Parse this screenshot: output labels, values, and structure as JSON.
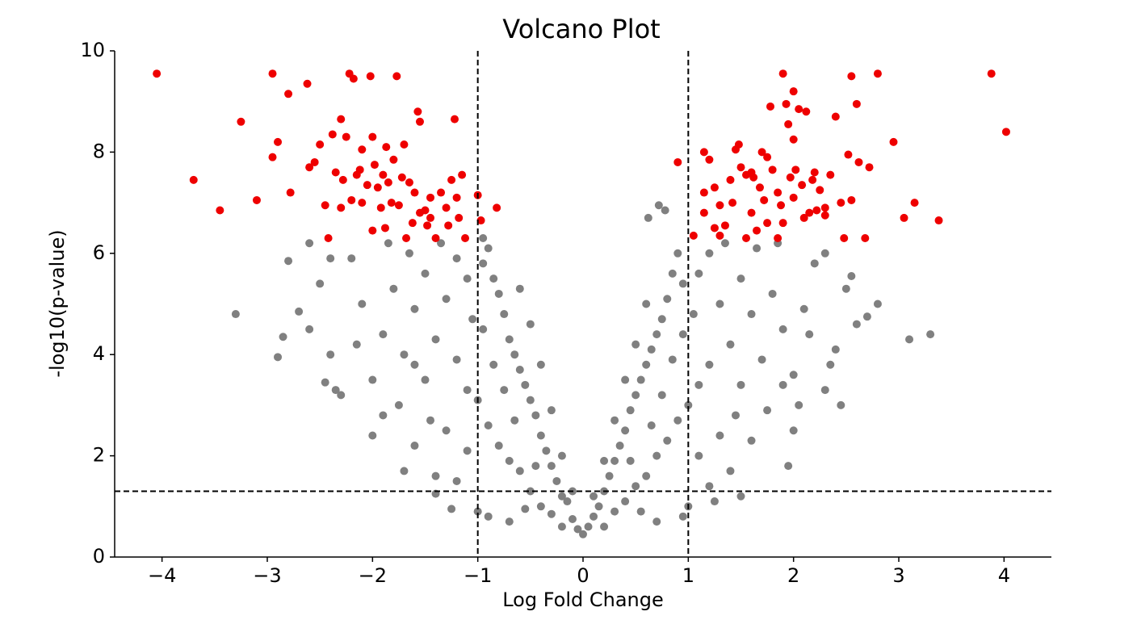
{
  "chart_data": {
    "type": "scatter",
    "title": "Volcano Plot",
    "x_label": "Log Fold Change",
    "y_label": "-log10(p-value)",
    "xlim": [
      -4.45,
      4.45
    ],
    "ylim": [
      0,
      10
    ],
    "xticks": [
      {
        "value": -4,
        "label": "−4"
      },
      {
        "value": -3,
        "label": "−3"
      },
      {
        "value": -2,
        "label": "−2"
      },
      {
        "value": -1,
        "label": "−1"
      },
      0,
      1,
      2,
      3,
      4
    ],
    "yticks": [
      0,
      2,
      4,
      6,
      8,
      10
    ],
    "vlines": [
      -1,
      1
    ],
    "hline": 1.3,
    "series": [
      {
        "color": "#808080",
        "x": [
          0,
          0.05,
          -0.05,
          0.1,
          -0.1,
          0.15,
          -0.15,
          0.2,
          -0.2,
          0.25,
          -0.25,
          0.3,
          -0.3,
          0.35,
          -0.35,
          0.4,
          -0.4,
          0.45,
          -0.45,
          0.5,
          -0.5,
          0.55,
          -0.55,
          0.6,
          -0.6,
          0.65,
          -0.65,
          0.7,
          -0.7,
          0.75,
          -0.75,
          0.8,
          -0.8,
          0.85,
          -0.85,
          0.9,
          -0.9,
          0.78,
          0.72,
          0.62,
          -0.95,
          0.3,
          -0.3,
          0.4,
          -0.4,
          0.5,
          -0.5,
          0.6,
          -0.6,
          0.7,
          -0.7,
          0.8,
          -0.8,
          0.9,
          -0.9,
          1.0,
          -1.0,
          1.1,
          -1.1,
          0.2,
          -0.2,
          0.55,
          -0.55,
          0.45,
          -0.45,
          0.65,
          -0.65,
          0.75,
          -0.75,
          0.85,
          -0.85,
          0.95,
          -0.95,
          1.0,
          -1.0,
          1.2,
          -1.2,
          1.1,
          -1.1,
          1.3,
          -1.3,
          1.2,
          -1.2,
          1.4,
          -1.4,
          1.3,
          -1.3,
          1.1,
          -1.1,
          1.2,
          -1.2,
          1.5,
          -1.5,
          1.6,
          -1.6,
          1.5,
          -1.5,
          1.45,
          -1.45,
          1.7,
          -1.7,
          1.8,
          -1.8,
          1.9,
          -1.9,
          1.65,
          -1.65,
          1.4,
          -1.4,
          1.6,
          -1.6,
          1.75,
          -1.75,
          2.0,
          -2.0,
          2.1,
          -2.1,
          2.2,
          -2.2,
          2.0,
          -2.0,
          2.3,
          -2.3,
          2.4,
          -2.4,
          2.5,
          -2.5,
          2.6,
          -2.6,
          2.7,
          -2.7,
          2.55,
          -2.8,
          3.3,
          3.1,
          -3.3,
          -2.9,
          -2.85,
          2.45,
          -2.45,
          2.35,
          -2.35,
          1.95,
          -1.7,
          1.5,
          -1.4,
          0.95,
          -0.9,
          0.7,
          -0.7,
          2.05,
          -1.9,
          1.85,
          -1.85,
          2.3,
          -2.4,
          1.35,
          -1.35,
          0.6,
          -0.6,
          0.5,
          -0.5,
          0.4,
          -0.4,
          0.3,
          -0.3,
          0.2,
          -0.2,
          0.1,
          -0.1,
          2.8,
          -2.6,
          1.9,
          -1.6,
          2.15,
          -2.15,
          1.05,
          -1.05,
          0.95,
          -0.95,
          1.25,
          -1.25
        ],
        "values": [
          0.45,
          0.6,
          0.55,
          0.8,
          0.75,
          1.0,
          1.1,
          1.3,
          1.2,
          1.6,
          1.5,
          1.9,
          1.8,
          2.2,
          2.1,
          2.5,
          2.4,
          2.9,
          2.8,
          3.2,
          3.1,
          3.5,
          3.4,
          3.8,
          3.7,
          4.1,
          4.0,
          4.4,
          4.3,
          4.7,
          4.8,
          5.1,
          5.2,
          5.6,
          5.5,
          6.0,
          6.1,
          6.85,
          6.95,
          6.7,
          6.3,
          0.9,
          0.85,
          1.1,
          1.0,
          1.4,
          1.3,
          1.6,
          1.7,
          2.0,
          1.9,
          2.3,
          2.2,
          2.7,
          2.6,
          3.0,
          3.1,
          3.4,
          3.3,
          0.6,
          0.6,
          0.9,
          0.95,
          1.9,
          1.8,
          2.6,
          2.7,
          3.2,
          3.3,
          3.9,
          3.8,
          4.4,
          4.5,
          1.0,
          0.9,
          1.4,
          1.5,
          2.0,
          2.1,
          2.4,
          2.5,
          3.8,
          3.9,
          4.2,
          4.3,
          5.0,
          5.1,
          5.6,
          5.5,
          6.0,
          5.9,
          5.5,
          5.6,
          4.8,
          4.9,
          3.4,
          3.5,
          2.8,
          2.7,
          3.9,
          4.0,
          5.2,
          5.3,
          4.5,
          4.4,
          6.1,
          6.0,
          1.7,
          1.6,
          2.3,
          2.2,
          2.9,
          3.0,
          3.6,
          3.5,
          4.9,
          5.0,
          5.8,
          5.9,
          2.5,
          2.4,
          3.3,
          3.2,
          4.1,
          4.0,
          5.3,
          5.4,
          4.6,
          4.5,
          4.75,
          4.85,
          5.55,
          5.85,
          4.4,
          4.3,
          4.8,
          3.95,
          4.35,
          3.0,
          3.45,
          3.8,
          3.3,
          1.8,
          1.7,
          1.2,
          1.25,
          0.8,
          0.8,
          0.7,
          0.7,
          3.0,
          2.8,
          6.2,
          6.2,
          6.0,
          5.9,
          6.2,
          6.2,
          5.0,
          5.3,
          4.2,
          4.6,
          3.5,
          3.8,
          2.7,
          2.9,
          1.9,
          2.0,
          1.2,
          1.3,
          5.0,
          6.2,
          3.4,
          3.8,
          4.4,
          4.2,
          4.8,
          4.7,
          5.4,
          5.8,
          1.1,
          0.95
        ]
      },
      {
        "color": "#ee0000",
        "x": [
          -4.05,
          -3.7,
          -3.45,
          -3.25,
          -3.1,
          -2.95,
          -2.9,
          -2.95,
          -2.8,
          -2.78,
          -2.62,
          -2.6,
          -2.55,
          -2.5,
          -2.45,
          -2.42,
          -2.38,
          -2.35,
          -2.3,
          -2.28,
          -2.25,
          -2.22,
          -2.18,
          -2.15,
          -2.12,
          -2.1,
          -2.05,
          -2.02,
          -2.0,
          -1.98,
          -1.95,
          -1.9,
          -1.87,
          -1.85,
          -1.82,
          -1.8,
          -1.77,
          -1.75,
          -1.72,
          -1.7,
          -1.68,
          -1.62,
          -1.6,
          -1.57,
          -1.55,
          -1.55,
          -1.5,
          -1.48,
          -1.45,
          -1.4,
          -1.35,
          -1.3,
          -1.28,
          -1.25,
          -1.22,
          -1.2,
          -1.18,
          -1.15,
          -1.12,
          -1.0,
          -0.97,
          -0.82,
          -2.0,
          -2.3,
          -1.92,
          -2.1,
          -2.2,
          -1.65,
          -1.88,
          -1.45,
          0.9,
          1.05,
          1.15,
          1.15,
          1.2,
          1.25,
          1.3,
          1.35,
          1.4,
          1.45,
          1.48,
          1.5,
          1.55,
          1.6,
          1.62,
          1.65,
          1.7,
          1.72,
          1.75,
          1.78,
          1.8,
          1.85,
          1.88,
          1.9,
          1.93,
          1.95,
          1.97,
          2.0,
          2.0,
          2.02,
          2.05,
          2.08,
          2.12,
          2.15,
          2.18,
          2.22,
          2.25,
          2.3,
          2.35,
          2.4,
          2.45,
          2.48,
          2.52,
          2.55,
          2.6,
          2.62,
          2.68,
          2.72,
          2.8,
          2.95,
          3.05,
          3.15,
          3.38,
          3.88,
          4.02,
          1.3,
          1.55,
          1.85,
          2.1,
          2.0,
          1.75,
          1.6,
          1.42,
          1.25,
          1.9,
          2.3,
          1.68,
          2.55,
          2.2,
          1.15
        ],
        "values": [
          9.55,
          7.45,
          6.85,
          8.6,
          7.05,
          9.55,
          8.2,
          7.9,
          9.15,
          7.2,
          9.35,
          7.7,
          7.8,
          8.15,
          6.95,
          6.3,
          8.35,
          7.6,
          8.65,
          7.45,
          8.3,
          9.55,
          9.45,
          7.55,
          7.65,
          8.05,
          7.35,
          9.5,
          8.3,
          7.75,
          7.3,
          7.55,
          8.1,
          7.4,
          7.0,
          7.85,
          9.5,
          6.95,
          7.5,
          8.15,
          6.3,
          6.6,
          7.2,
          8.8,
          8.6,
          6.8,
          6.85,
          6.55,
          6.7,
          6.3,
          7.2,
          6.9,
          6.55,
          7.45,
          8.65,
          7.1,
          6.7,
          7.55,
          6.3,
          7.15,
          6.65,
          6.9,
          6.45,
          6.9,
          6.9,
          7.0,
          7.05,
          7.4,
          6.5,
          7.1,
          7.8,
          6.35,
          6.8,
          8.0,
          7.85,
          7.3,
          6.95,
          6.55,
          7.45,
          8.05,
          8.15,
          7.7,
          7.55,
          6.8,
          7.5,
          6.45,
          8.0,
          7.05,
          6.6,
          8.9,
          7.65,
          7.2,
          6.95,
          9.55,
          8.95,
          8.55,
          7.5,
          9.2,
          8.25,
          7.65,
          8.85,
          7.35,
          8.8,
          6.8,
          7.45,
          6.85,
          7.25,
          6.75,
          7.55,
          8.7,
          7.0,
          6.3,
          7.95,
          9.5,
          8.95,
          7.8,
          6.3,
          7.7,
          9.55,
          8.2,
          6.7,
          7.0,
          6.65,
          9.55,
          8.4,
          6.35,
          6.3,
          6.3,
          6.7,
          7.1,
          7.9,
          7.6,
          7.0,
          6.5,
          6.6,
          6.9,
          7.3,
          7.05,
          7.6,
          7.2
        ]
      }
    ]
  }
}
